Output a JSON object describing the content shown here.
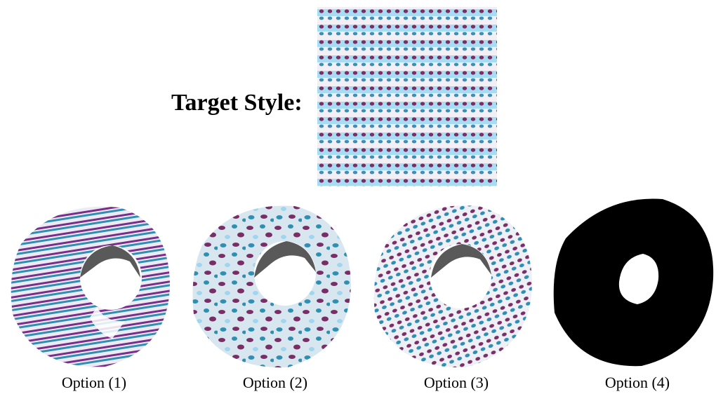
{
  "target": {
    "label": "Target Style:",
    "swatch_name": "dotted-stripe-texture"
  },
  "palette": {
    "light_blue": "#9fd6ee",
    "teal": "#2f8fb3",
    "purple": "#7a2e66",
    "white": "#f2f0f4",
    "black": "#000000"
  },
  "options": [
    {
      "label": "Option (1)",
      "style": "stripes"
    },
    {
      "label": "Option (2)",
      "style": "noise"
    },
    {
      "label": "Option (3)",
      "style": "dots"
    },
    {
      "label": "Option (4)",
      "style": "black"
    }
  ]
}
